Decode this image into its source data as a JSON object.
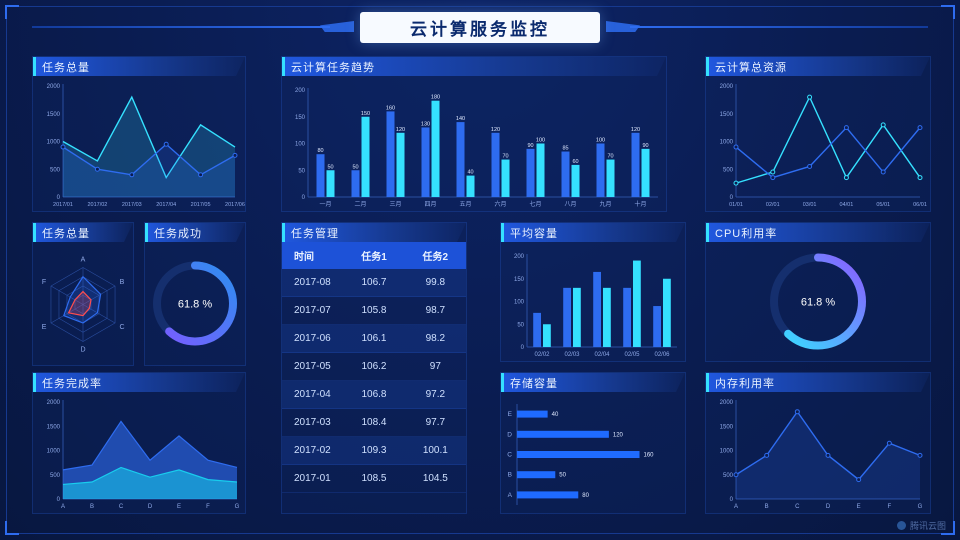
{
  "header": {
    "title": "云计算服务监控"
  },
  "watermark": {
    "label": "腾讯云图"
  },
  "colors": {
    "background": "#0a1c50",
    "panel_header_blue": "#1e54d8",
    "accent_cyan": "#35e1ff",
    "accent_blue": "#2e6cf0",
    "accent_red": "#ff4d4f",
    "accent_purple": "#8a5cff",
    "title_box_bg": "#f7faff",
    "title_text": "#0b2a6e"
  },
  "panels": {
    "task_total_line": {
      "title": "任务总量"
    },
    "task_trend": {
      "title": "云计算任务趋势"
    },
    "cloud_resource": {
      "title": "云计算总资源"
    },
    "task_radar": {
      "title": "任务总量"
    },
    "task_success": {
      "title": "任务成功"
    },
    "task_manage": {
      "title": "任务管理"
    },
    "avg_capacity": {
      "title": "平均容量"
    },
    "cpu": {
      "title": "CPU利用率"
    },
    "completion": {
      "title": "任务完成率"
    },
    "storage": {
      "title": "存储容量"
    },
    "memory": {
      "title": "内存利用率"
    }
  },
  "table": {
    "headers": [
      "时间",
      "任务1",
      "任务2"
    ],
    "rows": [
      [
        "2017-08",
        "106.7",
        "99.8"
      ],
      [
        "2017-07",
        "105.8",
        "98.7"
      ],
      [
        "2017-06",
        "106.1",
        "98.2"
      ],
      [
        "2017-05",
        "106.2",
        "97"
      ],
      [
        "2017-04",
        "106.8",
        "97.2"
      ],
      [
        "2017-03",
        "108.4",
        "97.7"
      ],
      [
        "2017-02",
        "109.3",
        "100.1"
      ],
      [
        "2017-01",
        "108.5",
        "104.5"
      ]
    ]
  },
  "chart_data": [
    {
      "id": "task_total_line",
      "type": "line",
      "title": "任务总量",
      "x": [
        "2017/01",
        "2017/02",
        "2017/03",
        "2017/04",
        "2017/05",
        "2017/06"
      ],
      "ylim": [
        0,
        2000
      ],
      "xfs": 5.5,
      "series": [
        {
          "name": "series-cyan",
          "color": "#35e1ff",
          "area": true,
          "values": [
            1000,
            650,
            1800,
            350,
            1300,
            900
          ]
        },
        {
          "name": "series-blue",
          "color": "#2e6cf0",
          "area": true,
          "markers": true,
          "values": [
            900,
            500,
            400,
            950,
            400,
            750
          ]
        }
      ]
    },
    {
      "id": "task_trend_bars",
      "type": "bar",
      "title": "云计算任务趋势",
      "categories": [
        "一月",
        "二月",
        "三月",
        "四月",
        "五月",
        "六月",
        "七月",
        "八月",
        "九月",
        "十月"
      ],
      "ylim": [
        0,
        200
      ],
      "show_labels": true,
      "series": [
        {
          "name": "任务1",
          "color": "#2e6cf0",
          "values": [
            80,
            50,
            160,
            130,
            140,
            120,
            90,
            85,
            100,
            120
          ]
        },
        {
          "name": "任务2",
          "color": "#35e1ff",
          "values": [
            50,
            150,
            120,
            180,
            40,
            70,
            100,
            60,
            70,
            90
          ]
        }
      ]
    },
    {
      "id": "cloud_resource_line",
      "type": "line",
      "title": "云计算总资源",
      "x": [
        "01/01",
        "02/01",
        "03/01",
        "04/01",
        "05/01",
        "06/01"
      ],
      "ylim": [
        0,
        2000
      ],
      "xfs": 5.5,
      "series": [
        {
          "name": "series-cyan",
          "color": "#35e1ff",
          "markers": true,
          "values": [
            250,
            450,
            1800,
            350,
            1300,
            350
          ]
        },
        {
          "name": "series-blue",
          "color": "#2e6cf0",
          "markers": true,
          "values": [
            900,
            350,
            550,
            1250,
            450,
            1250
          ]
        }
      ]
    },
    {
      "id": "task_radar_chart",
      "type": "radar",
      "title": "任务总量",
      "axes": [
        "A",
        "B",
        "C",
        "D",
        "E",
        "F"
      ],
      "max": 100,
      "series": [
        {
          "name": "series-blue",
          "color": "#2e6cf0",
          "values": [
            75,
            55,
            45,
            50,
            60,
            40
          ]
        },
        {
          "name": "series-red",
          "color": "#ff4d4f",
          "values": [
            35,
            25,
            20,
            30,
            45,
            25
          ]
        }
      ]
    },
    {
      "id": "task_success_gauge",
      "type": "donut",
      "title": "任务成功",
      "value": 61.8,
      "label": "61.8 %",
      "colors": [
        "#7b5bff",
        "#2e8ef0"
      ]
    },
    {
      "id": "avg_capacity_bars",
      "type": "bar",
      "title": "平均容量",
      "categories": [
        "02/02",
        "02/03",
        "02/04",
        "02/05",
        "02/06"
      ],
      "ylim": [
        0,
        200
      ],
      "show_labels": false,
      "series": [
        {
          "name": "series-blue",
          "color": "#2e6cf0",
          "values": [
            75,
            130,
            165,
            130,
            90
          ]
        },
        {
          "name": "series-cyan",
          "color": "#35e1ff",
          "values": [
            50,
            130,
            130,
            190,
            150
          ]
        }
      ]
    },
    {
      "id": "cpu_gauge",
      "type": "donut",
      "title": "CPU利用率",
      "value": 61.8,
      "label": "61.8 %",
      "colors": [
        "#35e1ff",
        "#8a5cff"
      ]
    },
    {
      "id": "completion_area",
      "type": "area",
      "title": "任务完成率",
      "x": [
        "A",
        "B",
        "C",
        "D",
        "E",
        "F",
        "G"
      ],
      "ylim": [
        0,
        2000
      ],
      "series": [
        {
          "name": "layer-outer",
          "color": "#2e6cf0",
          "opacity": 0.6,
          "values": [
            600,
            700,
            1600,
            800,
            1300,
            800,
            650
          ]
        },
        {
          "name": "layer-inner",
          "color": "#18cdee",
          "opacity": 0.55,
          "values": [
            300,
            350,
            650,
            450,
            600,
            400,
            350
          ]
        }
      ]
    },
    {
      "id": "storage_hbars",
      "type": "hbar",
      "title": "存储容量",
      "categories": [
        "A",
        "B",
        "C",
        "D",
        "E"
      ],
      "values": [
        80,
        50,
        160,
        120,
        40
      ],
      "xmax": 175,
      "color": "#1f6bff"
    },
    {
      "id": "memory_line",
      "type": "line",
      "title": "内存利用率",
      "x": [
        "A",
        "B",
        "C",
        "D",
        "E",
        "F",
        "G"
      ],
      "ylim": [
        0,
        2000
      ],
      "xfs": 6,
      "series": [
        {
          "name": "series-blue",
          "color": "#2e6cf0",
          "area": true,
          "markers": true,
          "values": [
            500,
            900,
            1800,
            900,
            400,
            1150,
            900
          ]
        }
      ]
    }
  ]
}
